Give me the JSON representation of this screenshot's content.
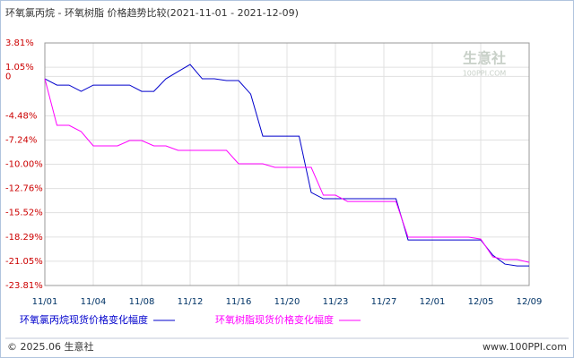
{
  "chart_data": {
    "type": "line",
    "title": "环氧氯丙烷 - 环氧树脂 价格趋势比较(2021-11-01 - 2021-12-09)",
    "watermark": "生意社",
    "watermark_sub": "100PPI.COM",
    "footer_left": "© 2025.06 生意社",
    "footer_right": "www.100PPI.com",
    "categories": [
      "11/01",
      null,
      null,
      null,
      "11/04",
      null,
      null,
      null,
      "11/08",
      null,
      null,
      null,
      "11/12",
      null,
      null,
      null,
      "11/16",
      null,
      null,
      null,
      "11/20",
      null,
      null,
      null,
      "11/23",
      null,
      null,
      null,
      "11/27",
      null,
      null,
      null,
      "12/01",
      null,
      null,
      null,
      "12/05",
      null,
      null,
      null,
      "12/09"
    ],
    "series": [
      {
        "name": "环氧氯丙烷现货价格变化幅度",
        "color": "#0000cc",
        "values": [
          -0.27,
          -0.99,
          -0.99,
          -1.7,
          -0.99,
          -0.99,
          -0.99,
          -0.99,
          -1.7,
          -1.7,
          -0.27,
          0.55,
          1.36,
          -0.27,
          -0.27,
          -0.47,
          -0.47,
          -2.01,
          -6.8,
          -6.8,
          -6.8,
          -6.8,
          -13.22,
          -13.93,
          -13.93,
          -13.93,
          -13.93,
          -13.93,
          -13.93,
          -13.93,
          -18.62,
          -18.62,
          -18.62,
          -18.62,
          -18.62,
          -18.62,
          -18.62,
          -20.36,
          -21.37,
          -21.58,
          -21.58
        ]
      },
      {
        "name": "环氧树脂现货价格变化幅度",
        "color": "#ff00ff",
        "values": [
          -0.27,
          -5.57,
          -5.57,
          -6.28,
          -7.91,
          -7.91,
          -7.91,
          -7.3,
          -7.3,
          -7.91,
          -7.91,
          -8.42,
          -8.42,
          -8.42,
          -8.42,
          -8.42,
          -9.95,
          -9.95,
          -9.95,
          -10.36,
          -10.36,
          -10.36,
          -10.36,
          -13.52,
          -13.52,
          -14.24,
          -14.24,
          -14.24,
          -14.24,
          -14.24,
          -18.31,
          -18.31,
          -18.31,
          -18.31,
          -18.31,
          -18.31,
          -18.52,
          -20.55,
          -20.86,
          -20.86,
          -21.17
        ]
      }
    ],
    "ylim": [
      -23.81,
      3.81
    ],
    "yticks": [
      {
        "value": 3.81,
        "label": "3.81%"
      },
      {
        "value": 1.05,
        "label": "1.05%"
      },
      0,
      {
        "value": -4.48,
        "label": "-4.48%"
      },
      {
        "value": -7.24,
        "label": "-7.24%"
      },
      {
        "value": -10.0,
        "label": "-10.00%"
      },
      {
        "value": -12.76,
        "label": "-12.76%"
      },
      {
        "value": -15.52,
        "label": "-15.52%"
      },
      {
        "value": -18.29,
        "label": "-18.29%"
      },
      {
        "value": -21.05,
        "label": "-21.05%"
      },
      {
        "value": -23.81,
        "label": "-23.81%"
      }
    ],
    "grid": true
  }
}
